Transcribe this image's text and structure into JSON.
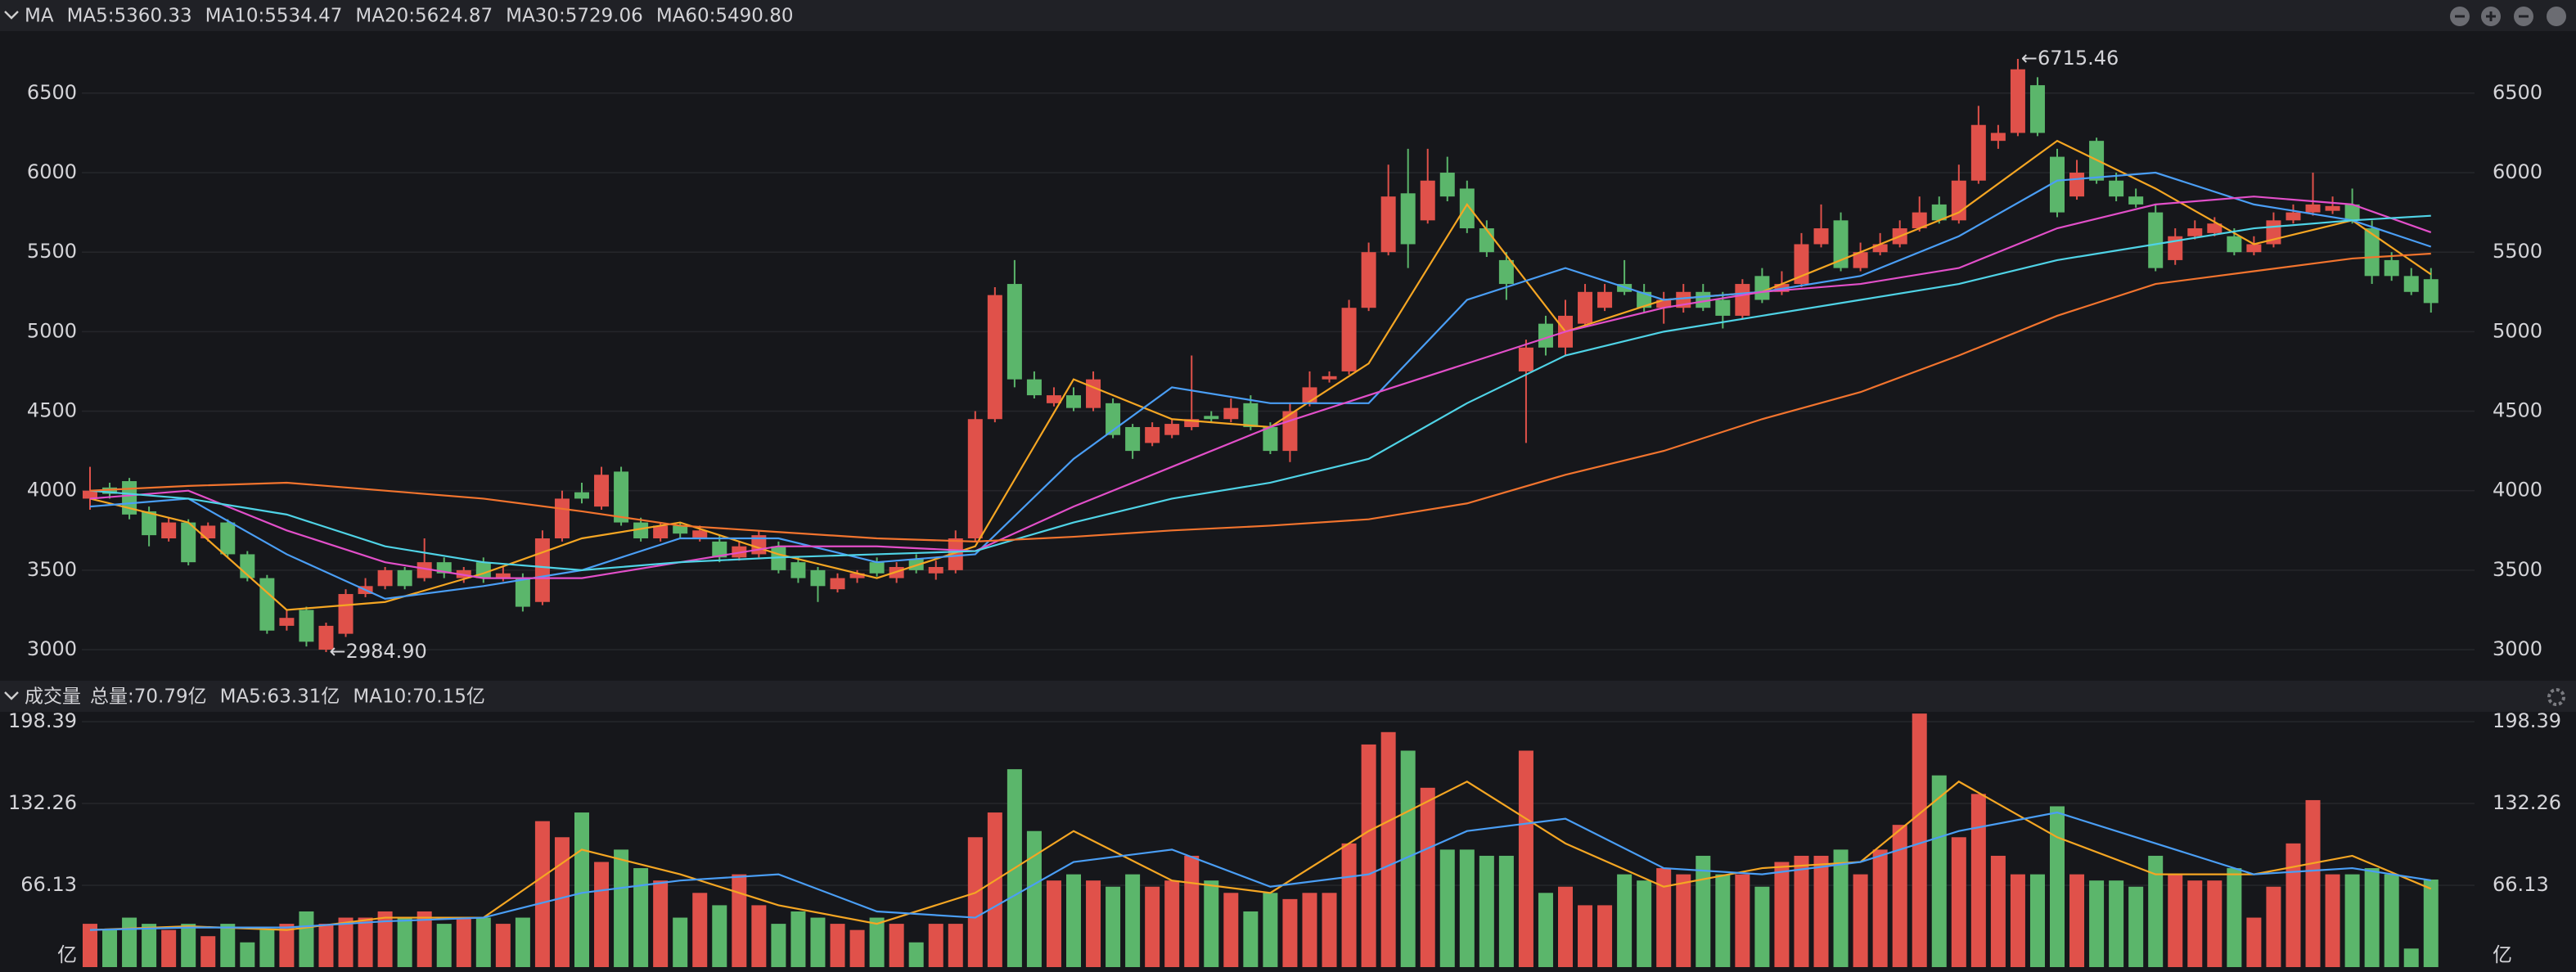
{
  "chart_data": [
    {
      "type": "candlestick",
      "title": "MA",
      "ylim": [
        2815,
        6880
      ],
      "yticks": [
        3000,
        3500,
        4000,
        4500,
        5000,
        5500,
        6000,
        6500
      ],
      "grid": true,
      "up_color": "#e0514a",
      "down_color": "#5bb66b",
      "open": [
        3950,
        4020,
        4060,
        3870,
        3700,
        3800,
        3700,
        3800,
        3600,
        3450,
        3150,
        3250,
        3000,
        3100,
        3350,
        3400,
        3500,
        3450,
        3550,
        3450,
        3550,
        3450,
        3450,
        3300,
        3700,
        3990,
        3900,
        4120,
        3800,
        3700,
        3780,
        3700,
        3680,
        3580,
        3600,
        3650,
        3550,
        3500,
        3380,
        3450,
        3550,
        3450,
        3570,
        3480,
        3500,
        3700,
        4450,
        5300,
        4700,
        4550,
        4600,
        4520,
        4550,
        4400,
        4300,
        4350,
        4400,
        4470,
        4450,
        4550,
        4400,
        4250,
        4550,
        4700,
        4750,
        5150,
        5500,
        5870,
        5700,
        6000,
        5900,
        5650,
        5450,
        4750,
        5050,
        4900,
        5050,
        5150,
        5300,
        5250,
        5150,
        5150,
        5250,
        5200,
        5100,
        5350,
        5250,
        5300,
        5550,
        5700,
        5400,
        5500,
        5550,
        5650,
        5800,
        5700,
        5950,
        6200,
        6250,
        6550,
        6100,
        5850,
        6200,
        5950,
        5850,
        5750,
        5450,
        5600,
        5620,
        5600,
        5500,
        5550,
        5700,
        5750,
        5760,
        5800,
        5650,
        5450,
        5350,
        5330
      ],
      "high": [
        4150,
        4050,
        4080,
        3900,
        3830,
        3820,
        3800,
        3820,
        3620,
        3470,
        3250,
        3270,
        3170,
        3380,
        3450,
        3520,
        3520,
        3700,
        3580,
        3520,
        3580,
        3520,
        3480,
        3750,
        4000,
        4050,
        4150,
        4150,
        3830,
        3800,
        3800,
        3780,
        3720,
        3680,
        3750,
        3680,
        3580,
        3520,
        3480,
        3500,
        3580,
        3550,
        3600,
        3560,
        3750,
        4500,
        5280,
        5450,
        4750,
        4650,
        4650,
        4750,
        4580,
        4420,
        4430,
        4450,
        4850,
        4500,
        4580,
        4600,
        4430,
        4550,
        4750,
        4750,
        5200,
        5560,
        6050,
        6150,
        6150,
        6100,
        5950,
        5700,
        5500,
        4950,
        5100,
        5200,
        5300,
        5300,
        5450,
        5300,
        5250,
        5300,
        5300,
        5250,
        5330,
        5400,
        5380,
        5620,
        5800,
        5750,
        5560,
        5620,
        5700,
        5850,
        5850,
        6050,
        6420,
        6300,
        6715.46,
        6600,
        6150,
        6080,
        6220,
        6000,
        5900,
        5800,
        5650,
        5700,
        5720,
        5650,
        5600,
        5750,
        5800,
        6000,
        5850,
        5900,
        5700,
        5500,
        5400,
        5400
      ],
      "low": [
        3880,
        3950,
        3820,
        3650,
        3680,
        3530,
        3680,
        3580,
        3430,
        3100,
        3120,
        3020,
        2984.9,
        3080,
        3330,
        3380,
        3380,
        3430,
        3450,
        3420,
        3420,
        3430,
        3240,
        3280,
        3680,
        3920,
        3880,
        3780,
        3680,
        3680,
        3700,
        3680,
        3550,
        3560,
        3580,
        3480,
        3420,
        3300,
        3360,
        3420,
        3460,
        3420,
        3480,
        3440,
        3480,
        3680,
        4430,
        4650,
        4580,
        4530,
        4500,
        4500,
        4330,
        4200,
        4280,
        4330,
        4380,
        4430,
        4430,
        4380,
        4230,
        4180,
        4530,
        4680,
        4730,
        5130,
        5480,
        5400,
        5680,
        5820,
        5620,
        5470,
        5200,
        4300,
        4850,
        4850,
        5030,
        5130,
        5230,
        5120,
        5050,
        5120,
        5130,
        5020,
        5080,
        5180,
        5230,
        5280,
        5530,
        5380,
        5380,
        5480,
        5530,
        5630,
        5680,
        5680,
        5930,
        6150,
        6230,
        6230,
        5720,
        5830,
        5930,
        5820,
        5780,
        5380,
        5420,
        5580,
        5600,
        5480,
        5480,
        5530,
        5680,
        5730,
        5740,
        5680,
        5300,
        5320,
        5230,
        5120
      ],
      "close": [
        4000,
        3980,
        3850,
        3720,
        3800,
        3550,
        3780,
        3600,
        3450,
        3120,
        3200,
        3050,
        3150,
        3350,
        3400,
        3500,
        3400,
        3550,
        3480,
        3500,
        3450,
        3480,
        3270,
        3700,
        3950,
        3950,
        4100,
        3800,
        3700,
        3780,
        3730,
        3750,
        3580,
        3650,
        3720,
        3500,
        3450,
        3400,
        3450,
        3480,
        3480,
        3520,
        3500,
        3520,
        3700,
        4450,
        5230,
        4700,
        4600,
        4600,
        4520,
        4700,
        4350,
        4250,
        4400,
        4420,
        4450,
        4450,
        4520,
        4400,
        4250,
        4500,
        4650,
        4720,
        5150,
        5500,
        5850,
        5550,
        5950,
        5850,
        5650,
        5500,
        5300,
        4900,
        4900,
        5100,
        5250,
        5250,
        5250,
        5150,
        5200,
        5250,
        5150,
        5100,
        5300,
        5200,
        5300,
        5550,
        5650,
        5400,
        5500,
        5550,
        5650,
        5750,
        5700,
        5950,
        6300,
        6250,
        6650,
        6250,
        5750,
        6000,
        5950,
        5850,
        5800,
        5400,
        5600,
        5650,
        5680,
        5500,
        5550,
        5700,
        5750,
        5800,
        5790,
        5700,
        5350,
        5350,
        5250,
        5180
      ],
      "lines": [
        {
          "name": "MA5:5360.33",
          "color": "#f5a623",
          "x": [
            0,
            5,
            10,
            15,
            20,
            25,
            30,
            35,
            40,
            45,
            50,
            55,
            60,
            65,
            70,
            75,
            80,
            85,
            90,
            95,
            100,
            105,
            110,
            115,
            119
          ],
          "values": [
            3950,
            3800,
            3250,
            3300,
            3480,
            3700,
            3800,
            3600,
            3450,
            3650,
            4700,
            4450,
            4400,
            4800,
            5800,
            5000,
            5200,
            5250,
            5500,
            5750,
            6200,
            5900,
            5550,
            5700,
            5360.33
          ]
        },
        {
          "name": "MA10:5534.47",
          "color": "#4a9ef5",
          "x": [
            0,
            5,
            10,
            15,
            20,
            25,
            30,
            35,
            40,
            45,
            50,
            55,
            60,
            65,
            70,
            75,
            80,
            85,
            90,
            95,
            100,
            105,
            110,
            115,
            119
          ],
          "values": [
            3900,
            3950,
            3600,
            3320,
            3400,
            3500,
            3700,
            3700,
            3550,
            3600,
            4200,
            4650,
            4550,
            4550,
            5200,
            5400,
            5200,
            5250,
            5350,
            5600,
            5950,
            6000,
            5800,
            5700,
            5534.47
          ]
        },
        {
          "name": "MA20:5624.87",
          "color": "#e24fc9",
          "x": [
            0,
            5,
            10,
            15,
            20,
            25,
            30,
            35,
            40,
            45,
            50,
            55,
            60,
            65,
            70,
            75,
            80,
            85,
            90,
            95,
            100,
            105,
            110,
            115,
            119
          ],
          "values": [
            3950,
            4000,
            3750,
            3550,
            3450,
            3450,
            3550,
            3650,
            3650,
            3620,
            3900,
            4150,
            4400,
            4600,
            4800,
            5000,
            5150,
            5250,
            5300,
            5400,
            5650,
            5800,
            5850,
            5800,
            5624.87
          ]
        },
        {
          "name": "MA30:5729.06",
          "color": "#4fd3e6",
          "x": [
            0,
            5,
            10,
            15,
            20,
            25,
            30,
            35,
            40,
            45,
            50,
            55,
            60,
            65,
            70,
            75,
            80,
            85,
            90,
            95,
            100,
            105,
            110,
            115,
            119
          ],
          "values": [
            4000,
            3950,
            3850,
            3650,
            3550,
            3500,
            3550,
            3580,
            3600,
            3620,
            3800,
            3950,
            4050,
            4200,
            4550,
            4850,
            5000,
            5100,
            5200,
            5300,
            5450,
            5550,
            5650,
            5700,
            5729.06
          ]
        },
        {
          "name": "MA60:5490.80",
          "color": "#f2742e",
          "x": [
            0,
            5,
            10,
            15,
            20,
            25,
            30,
            35,
            40,
            45,
            50,
            55,
            60,
            65,
            70,
            75,
            80,
            85,
            90,
            95,
            100,
            105,
            110,
            115,
            119
          ],
          "values": [
            4000,
            4030,
            4050,
            4000,
            3950,
            3870,
            3780,
            3740,
            3700,
            3680,
            3710,
            3750,
            3780,
            3820,
            3920,
            4100,
            4250,
            4450,
            4620,
            4850,
            5100,
            5300,
            5380,
            5460,
            5490.8
          ]
        }
      ],
      "annotations": [
        {
          "label": "←6715.46",
          "x": 98,
          "y": 6715.46
        },
        {
          "label": "←2984.90",
          "x": 12,
          "y": 2984.9
        }
      ]
    },
    {
      "type": "bar",
      "title": "成交量",
      "summary": "总量:70.79亿",
      "summary_color": "#5bb66b",
      "unit": "亿",
      "ylim": [
        0,
        206.4
      ],
      "yticks": [
        66.13,
        132.26,
        198.39
      ],
      "values": [
        35,
        30,
        40,
        35,
        30,
        35,
        25,
        35,
        20,
        30,
        35,
        45,
        35,
        40,
        40,
        45,
        40,
        45,
        35,
        40,
        40,
        35,
        40,
        118,
        105,
        125,
        85,
        95,
        80,
        70,
        40,
        60,
        50,
        75,
        50,
        35,
        45,
        40,
        35,
        30,
        40,
        35,
        20,
        35,
        35,
        105,
        125,
        160,
        110,
        70,
        75,
        70,
        65,
        75,
        65,
        70,
        90,
        70,
        60,
        45,
        60,
        55,
        60,
        60,
        100,
        180,
        190,
        175,
        145,
        95,
        95,
        90,
        90,
        175,
        60,
        65,
        50,
        50,
        75,
        70,
        80,
        75,
        90,
        75,
        75,
        65,
        85,
        90,
        90,
        95,
        75,
        95,
        115,
        205,
        155,
        105,
        140,
        90,
        75,
        75,
        130,
        75,
        70,
        70,
        65,
        90,
        75,
        70,
        70,
        80,
        40,
        65,
        100,
        135,
        75,
        75,
        80,
        75,
        15,
        70.79
      ],
      "lines": [
        {
          "name": "MA5:63.31亿",
          "color": "#f5a623",
          "x": [
            0,
            5,
            10,
            15,
            20,
            25,
            30,
            35,
            40,
            45,
            50,
            55,
            60,
            65,
            70,
            75,
            80,
            85,
            90,
            95,
            100,
            105,
            110,
            115,
            119
          ],
          "values": [
            30,
            33,
            30,
            40,
            40,
            95,
            75,
            50,
            35,
            60,
            110,
            70,
            60,
            110,
            150,
            100,
            65,
            80,
            85,
            150,
            105,
            75,
            75,
            90,
            63.31
          ]
        },
        {
          "name": "MA10:70.15亿",
          "color": "#4a9ef5",
          "x": [
            0,
            5,
            10,
            15,
            20,
            25,
            30,
            35,
            40,
            45,
            50,
            55,
            60,
            65,
            70,
            75,
            80,
            85,
            90,
            95,
            100,
            105,
            110,
            115,
            119
          ],
          "values": [
            30,
            32,
            32,
            37,
            40,
            60,
            70,
            75,
            45,
            40,
            85,
            95,
            65,
            75,
            110,
            120,
            80,
            75,
            85,
            110,
            125,
            100,
            75,
            80,
            70.15
          ]
        }
      ]
    }
  ]
}
